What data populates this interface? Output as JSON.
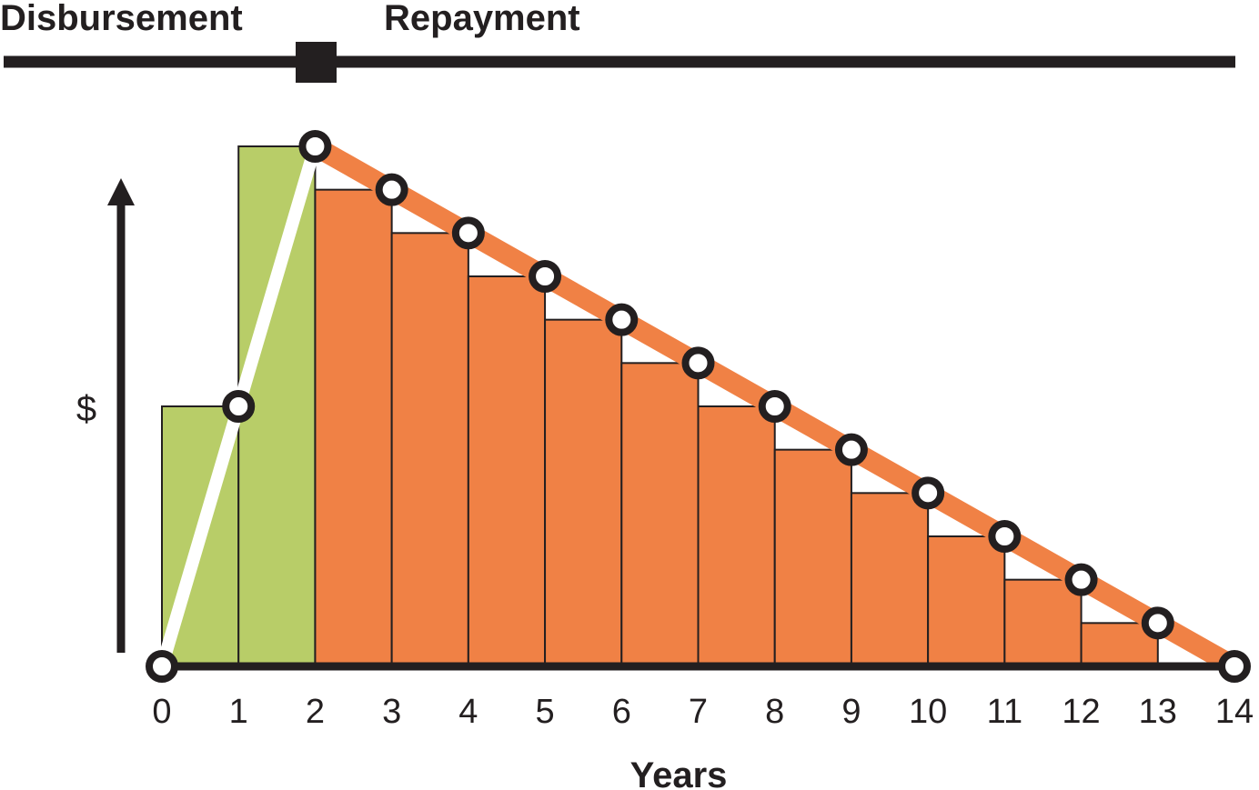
{
  "header": {
    "disbursement_label": "Disbursement",
    "repayment_label": "Repayment"
  },
  "chart_data": {
    "type": "bar",
    "title": "",
    "xlabel": "Years",
    "ylabel": "$",
    "x_ticks": [
      "0",
      "1",
      "2",
      "3",
      "4",
      "5",
      "6",
      "7",
      "8",
      "9",
      "10",
      "11",
      "12",
      "13",
      "14"
    ],
    "xlim": [
      0,
      14
    ],
    "ylim": [
      0,
      12
    ],
    "phase_boundary_year": 2,
    "series": [
      {
        "name": "Disbursement",
        "color": "#b8cd68",
        "bars": [
          {
            "x_start": 0,
            "x_end": 1,
            "value": 6
          },
          {
            "x_start": 1,
            "x_end": 2,
            "value": 12
          }
        ]
      },
      {
        "name": "Repayment",
        "color": "#f08145",
        "bars": [
          {
            "x_start": 2,
            "x_end": 3,
            "value": 11
          },
          {
            "x_start": 3,
            "x_end": 4,
            "value": 10
          },
          {
            "x_start": 4,
            "x_end": 5,
            "value": 9
          },
          {
            "x_start": 5,
            "x_end": 6,
            "value": 8
          },
          {
            "x_start": 6,
            "x_end": 7,
            "value": 7
          },
          {
            "x_start": 7,
            "x_end": 8,
            "value": 6
          },
          {
            "x_start": 8,
            "x_end": 9,
            "value": 5
          },
          {
            "x_start": 9,
            "x_end": 10,
            "value": 4
          },
          {
            "x_start": 10,
            "x_end": 11,
            "value": 3
          },
          {
            "x_start": 11,
            "x_end": 12,
            "value": 2
          },
          {
            "x_start": 12,
            "x_end": 13,
            "value": 1
          }
        ]
      }
    ],
    "balance_line": {
      "disbursement_color": "#ffffff",
      "repayment_color": "#f08145",
      "points": [
        {
          "x": 0,
          "y": 0
        },
        {
          "x": 1,
          "y": 6
        },
        {
          "x": 2,
          "y": 12
        },
        {
          "x": 3,
          "y": 11
        },
        {
          "x": 4,
          "y": 10
        },
        {
          "x": 5,
          "y": 9
        },
        {
          "x": 6,
          "y": 8
        },
        {
          "x": 7,
          "y": 7
        },
        {
          "x": 8,
          "y": 6
        },
        {
          "x": 9,
          "y": 5
        },
        {
          "x": 10,
          "y": 4
        },
        {
          "x": 11,
          "y": 3
        },
        {
          "x": 12,
          "y": 2
        },
        {
          "x": 13,
          "y": 1
        },
        {
          "x": 14,
          "y": 0
        }
      ]
    },
    "colors": {
      "ink": "#231f20",
      "disbursement": "#b8cd68",
      "repayment": "#f08145"
    }
  }
}
